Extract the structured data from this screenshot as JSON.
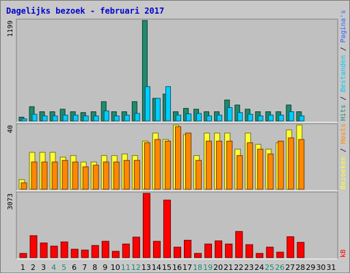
{
  "chart_data": {
    "type": "bar",
    "title": "Dagelijks bezoek - februari 2017",
    "days": [
      "1",
      "2",
      "3",
      "4",
      "5",
      "6",
      "7",
      "8",
      "9",
      "10",
      "11",
      "12",
      "13",
      "14",
      "15",
      "16",
      "17",
      "18",
      "19",
      "20",
      "21",
      "22",
      "23",
      "24",
      "25",
      "26",
      "27",
      "28",
      "29",
      "30",
      "31"
    ],
    "weekend_days": [
      "4",
      "5",
      "11",
      "12",
      "18",
      "19",
      "25",
      "26"
    ],
    "colors": {
      "hits": "#1f8a70",
      "files": "#00ccff",
      "pages": "#3366ff",
      "visits": "#ffff33",
      "sites": "#ff8800",
      "kb": "#ff0000",
      "weekend_label": "#1f8a70",
      "weekday_label": "#000000",
      "title": "#0000cc"
    },
    "panels": [
      {
        "id": "usage",
        "ytick": "1199",
        "ymax": 1199,
        "series": [
          {
            "name": "Hits",
            "values": [
              45,
              170,
              110,
              110,
              140,
              110,
              100,
              110,
              230,
              110,
              110,
              230,
              1199,
              270,
              320,
              110,
              150,
              140,
              110,
              110,
              250,
              190,
              140,
              110,
              110,
              110,
              190,
              110,
              0,
              0,
              0
            ]
          },
          {
            "name": "Bestanden",
            "values": [
              25,
              80,
              60,
              60,
              70,
              70,
              60,
              60,
              120,
              60,
              70,
              90,
              410,
              270,
              410,
              70,
              85,
              90,
              60,
              70,
              160,
              100,
              80,
              60,
              70,
              70,
              110,
              60,
              0,
              0,
              0
            ]
          },
          {
            "name": "Pagina's",
            "values": [
              0,
              0,
              0,
              0,
              0,
              0,
              0,
              0,
              0,
              0,
              0,
              0,
              0,
              0,
              0,
              0,
              0,
              0,
              0,
              0,
              0,
              0,
              0,
              0,
              0,
              0,
              0,
              0,
              0,
              0,
              0
            ]
          }
        ]
      },
      {
        "id": "visits",
        "ytick": "40",
        "ymax": 40,
        "series": [
          {
            "name": "Bezoeken",
            "values": [
              6,
              23,
              23,
              23,
              20,
              21,
              17,
              17,
              21,
              21,
              22,
              21,
              30,
              35,
              31,
              40,
              34,
              21,
              35,
              35,
              35,
              25,
              35,
              28,
              25,
              29,
              37,
              40,
              0,
              0,
              0
            ]
          },
          {
            "name": "Hosts",
            "values": [
              4,
              17,
              17,
              17,
              18,
              17,
              14,
              15,
              17,
              17,
              18,
              18,
              29,
              31,
              30,
              39,
              35,
              18,
              30,
              30,
              30,
              21,
              29,
              25,
              22,
              30,
              32,
              31,
              0,
              0,
              0
            ]
          }
        ]
      },
      {
        "id": "traffic",
        "ytick": "3073",
        "ymax": 3073,
        "series": [
          {
            "name": "kB",
            "values": [
              200,
              1050,
              700,
              550,
              750,
              400,
              360,
              580,
              780,
              300,
              650,
              980,
              3073,
              780,
              2750,
              500,
              830,
              200,
              650,
              800,
              650,
              1250,
              620,
              200,
              500,
              260,
              1000,
              730,
              0,
              0,
              0
            ]
          }
        ]
      }
    ],
    "side_labels": {
      "usage": [
        "Hits",
        "Bestanden",
        "Pagina's"
      ],
      "visits": [
        "Bezoeken",
        "Hosts"
      ],
      "traffic": [
        "kB"
      ]
    }
  }
}
